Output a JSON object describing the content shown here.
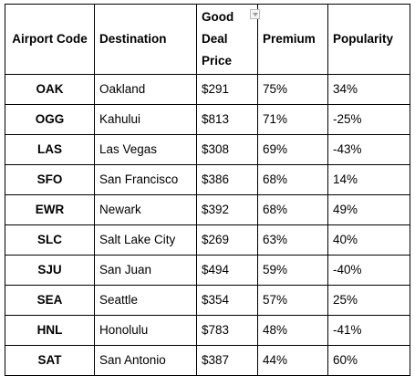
{
  "table": {
    "headers": {
      "airport_code": "Airport Code",
      "destination": "Destination",
      "price_line1": "Good",
      "price_line2": "Deal",
      "price_line3": "Price",
      "premium": "Premium",
      "popularity": "Popularity"
    },
    "filter_icon": "dropdown-arrow-icon",
    "rows": [
      {
        "code": "OAK",
        "destination": "Oakland",
        "price": "$291",
        "premium": "75%",
        "popularity": "34%"
      },
      {
        "code": "OGG",
        "destination": "Kahului",
        "price": "$813",
        "premium": "71%",
        "popularity": "-25%"
      },
      {
        "code": "LAS",
        "destination": "Las Vegas",
        "price": "$308",
        "premium": "69%",
        "popularity": "-43%"
      },
      {
        "code": "SFO",
        "destination": "San Francisco",
        "price": "$386",
        "premium": "68%",
        "popularity": "14%"
      },
      {
        "code": "EWR",
        "destination": "Newark",
        "price": "$392",
        "premium": "68%",
        "popularity": "49%"
      },
      {
        "code": "SLC",
        "destination": "Salt Lake City",
        "price": "$269",
        "premium": "63%",
        "popularity": "40%"
      },
      {
        "code": "SJU",
        "destination": "San Juan",
        "price": "$494",
        "premium": "59%",
        "popularity": "-40%"
      },
      {
        "code": "SEA",
        "destination": "Seattle",
        "price": "$354",
        "premium": "57%",
        "popularity": "25%"
      },
      {
        "code": "HNL",
        "destination": "Honolulu",
        "price": "$783",
        "premium": "48%",
        "popularity": "-41%"
      },
      {
        "code": "SAT",
        "destination": "San Antonio",
        "price": "$387",
        "premium": "44%",
        "popularity": "60%"
      }
    ]
  }
}
